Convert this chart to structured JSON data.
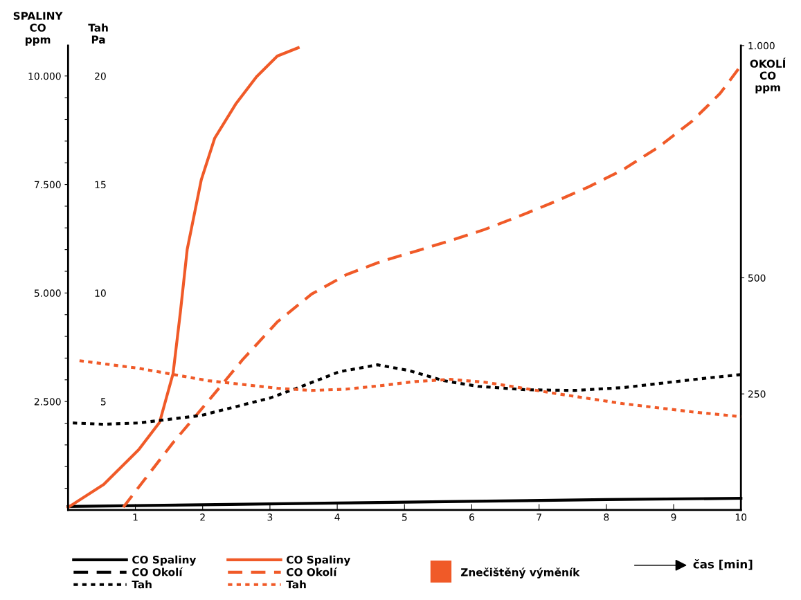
{
  "chart_data": {
    "type": "line",
    "ylabel": "SPALINY\nCO\nppm",
    "y3label": "Tah\nPa",
    "y2label": "OKOLÍ\nCO\nppm",
    "xlabel": "čas [min]",
    "xlim": [
      0,
      10
    ],
    "xticks": [
      {
        "value": 0,
        "label": null
      },
      1,
      2,
      3,
      4,
      5,
      6,
      7,
      8,
      9,
      10
    ],
    "ylim": [
      0,
      10700
    ],
    "yticks": [
      {
        "value": 500,
        "label": null
      },
      {
        "value": 1000,
        "label": null
      },
      {
        "value": 1500,
        "label": null
      },
      {
        "value": 2000,
        "label": null
      },
      {
        "value": 2500,
        "label": "2.500"
      },
      {
        "value": 3000,
        "label": null
      },
      {
        "value": 3500,
        "label": null
      },
      {
        "value": 4000,
        "label": null
      },
      {
        "value": 4500,
        "label": null
      },
      {
        "value": 5000,
        "label": "5.000"
      },
      {
        "value": 5500,
        "label": null
      },
      {
        "value": 6000,
        "label": null
      },
      {
        "value": 6500,
        "label": null
      },
      {
        "value": 7000,
        "label": null
      },
      {
        "value": 7500,
        "label": "7.500"
      },
      {
        "value": 8000,
        "label": null
      },
      {
        "value": 8500,
        "label": null
      },
      {
        "value": 9000,
        "label": null
      },
      {
        "value": 9500,
        "label": null
      },
      {
        "value": 10000,
        "label": "10.000"
      }
    ],
    "y3lim": [
      0,
      21.4
    ],
    "y3ticks": [
      5,
      10,
      15,
      20
    ],
    "y2lim": [
      0,
      1000
    ],
    "y2ticks": [
      250,
      500,
      {
        "value": 1000,
        "label": "1.000"
      }
    ],
    "legend": "bottom",
    "grid": false,
    "annotations": [
      "Znečištěný výměník"
    ],
    "series": [
      {
        "name": "CO Spaliny",
        "color": "#000000",
        "line_style": "solid",
        "x": [
          0,
          2,
          4,
          6,
          8,
          10
        ],
        "values": [
          80,
          120,
          160,
          200,
          240,
          270
        ]
      },
      {
        "name": "CO Okolí",
        "color": "#000000",
        "line_style": "dashed",
        "axis": "y2"
      },
      {
        "name": "Tah",
        "color": "#000000",
        "line_style": "dotted",
        "axis": "y3",
        "x": [
          0.07,
          0.53,
          1.05,
          1.98,
          3.0,
          3.5,
          4.03,
          4.6,
          5.06,
          5.58,
          6.09,
          6.81,
          7.53,
          8.25,
          8.87,
          9.49,
          10
        ],
        "values": [
          4.01,
          3.95,
          4.01,
          4.36,
          5.16,
          5.73,
          6.37,
          6.69,
          6.43,
          5.96,
          5.7,
          5.54,
          5.51,
          5.64,
          5.86,
          6.08,
          6.24
        ]
      },
      {
        "name": "CO Spaliny",
        "color": "#f05a28",
        "line_style": "solid",
        "x": [
          0,
          0.53,
          1.05,
          1.36,
          1.56,
          1.67,
          1.77,
          1.98,
          2.18,
          2.49,
          2.8,
          3.11,
          3.42
        ],
        "values": [
          60,
          590,
          1390,
          2020,
          3140,
          4570,
          6000,
          7610,
          8570,
          9350,
          9980,
          10460,
          10650
        ]
      },
      {
        "name": "CO Okolí",
        "color": "#f05a28",
        "line_style": "dashed",
        "axis": "y2",
        "x": [
          0.82,
          1.56,
          2.08,
          2.59,
          3.11,
          3.62,
          4.14,
          4.65,
          5.16,
          5.68,
          6.19,
          6.71,
          7.22,
          7.74,
          8.25,
          8.77,
          9.28,
          9.69,
          10
        ],
        "values": [
          6,
          145,
          234,
          323,
          405,
          465,
          507,
          535,
          557,
          580,
          604,
          633,
          663,
          696,
          733,
          781,
          838,
          897,
          957
        ]
      },
      {
        "name": "Tah",
        "color": "#f05a28",
        "line_style": "dotted",
        "axis": "y3",
        "x": [
          0.17,
          1.05,
          2.08,
          3.11,
          3.62,
          4.14,
          4.65,
          5.16,
          5.68,
          6.19,
          6.71,
          7.22,
          8.25,
          9.28,
          10
        ],
        "values": [
          6.88,
          6.53,
          5.96,
          5.61,
          5.51,
          5.57,
          5.73,
          5.92,
          6.02,
          5.89,
          5.64,
          5.38,
          4.9,
          4.52,
          4.3
        ]
      }
    ]
  }
}
